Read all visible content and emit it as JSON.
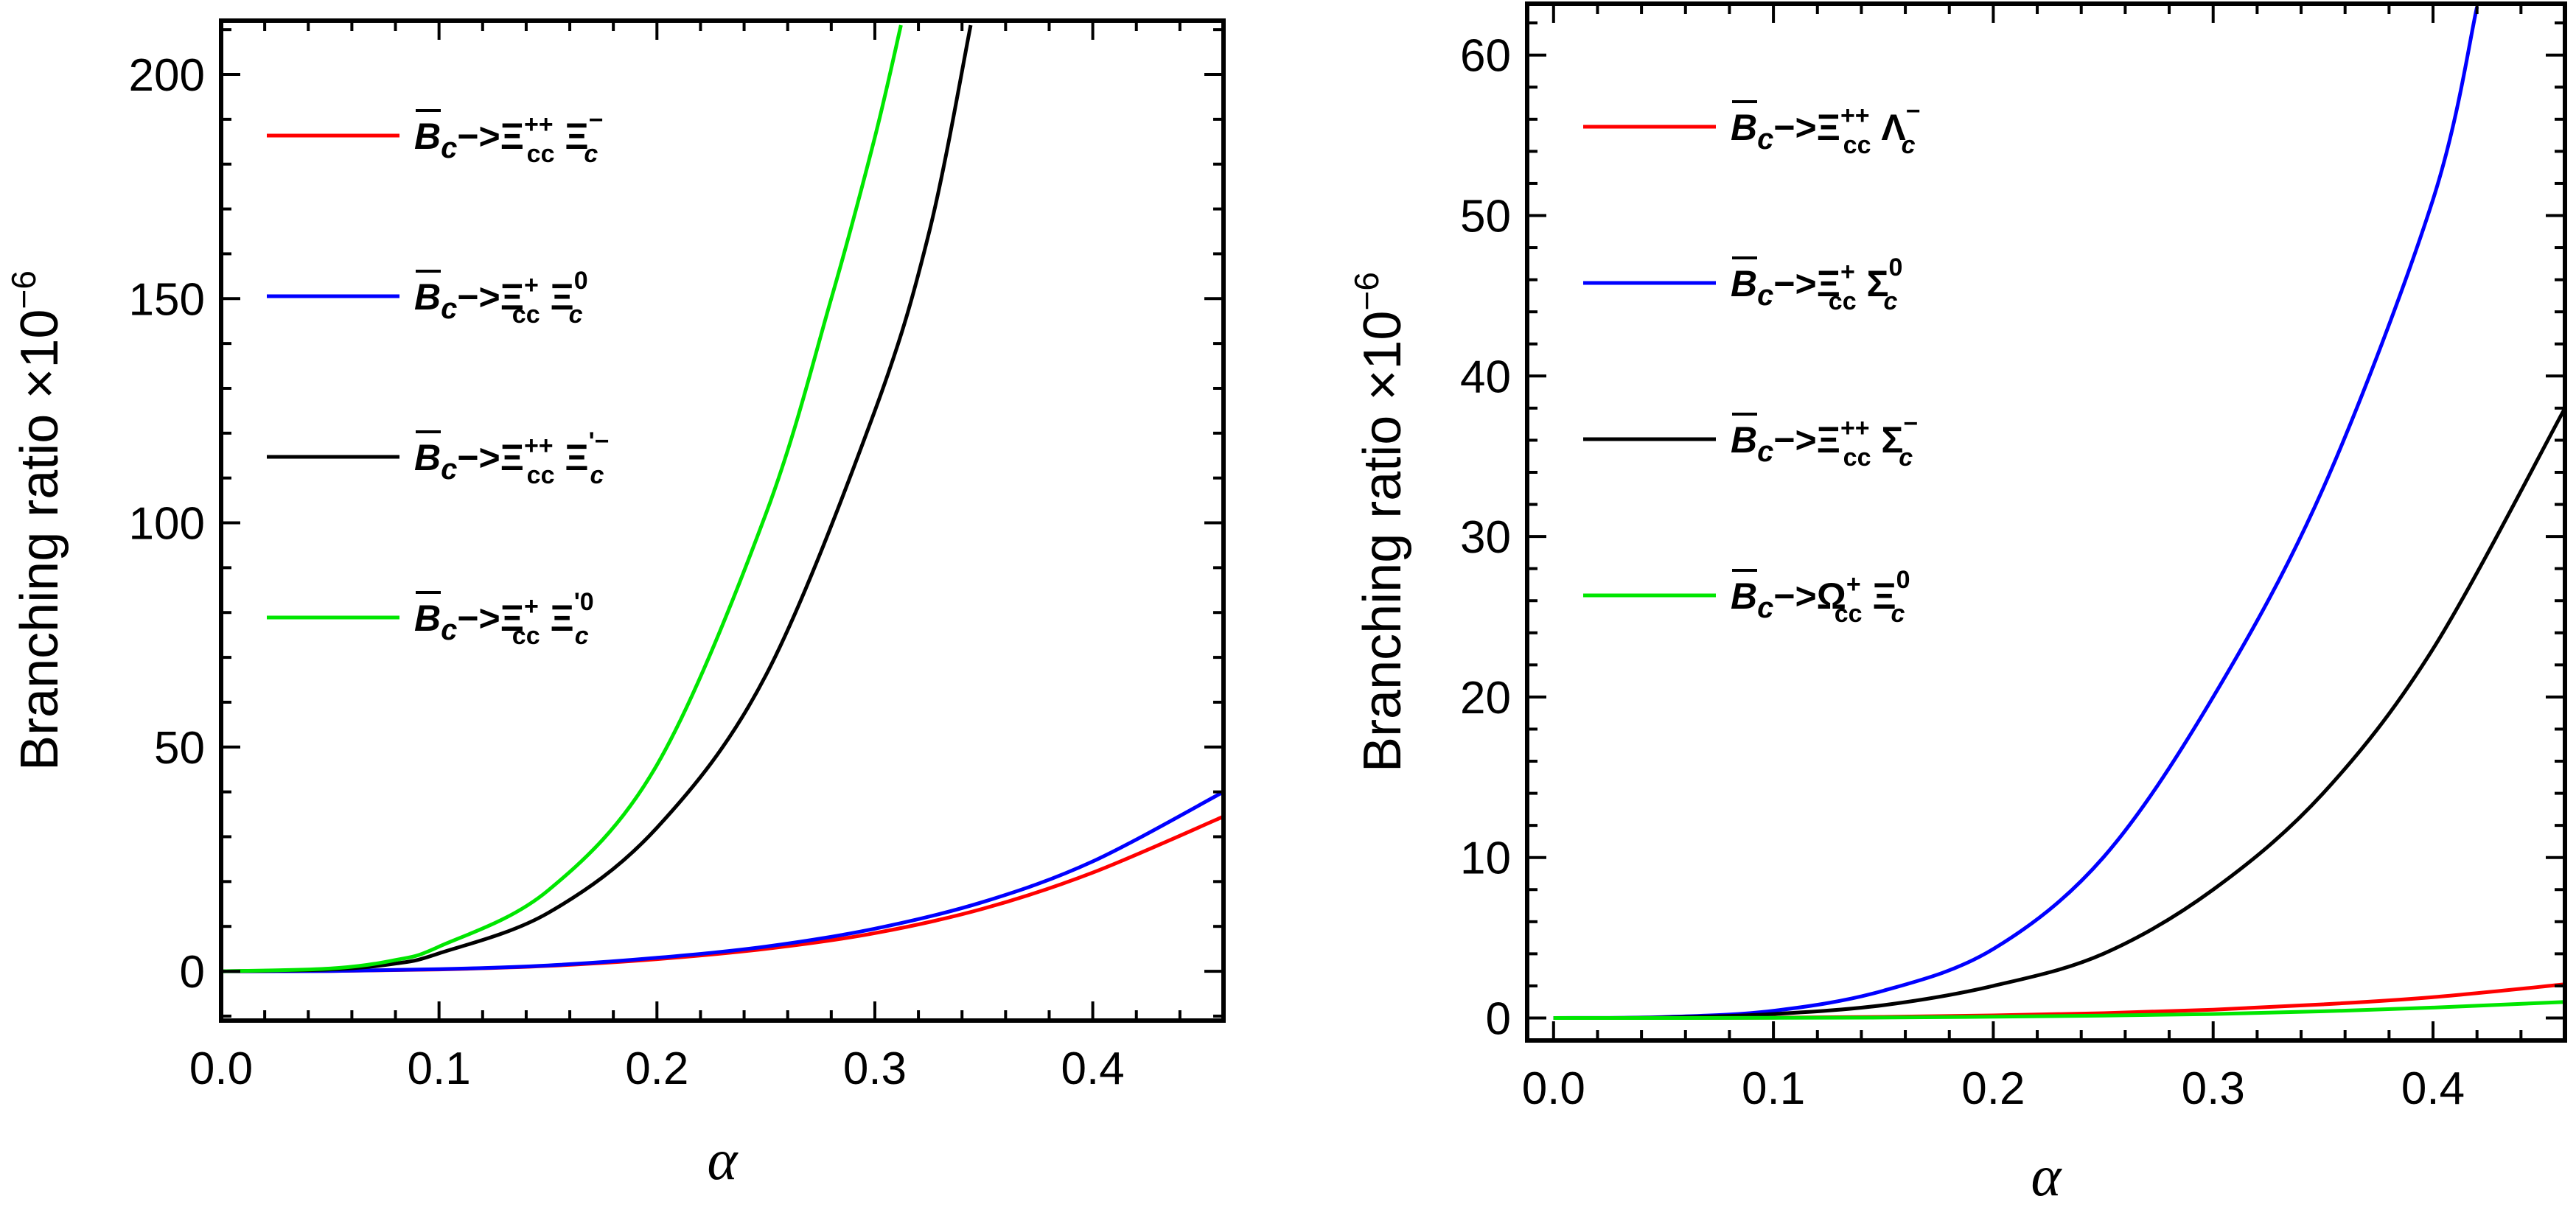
{
  "chart_data": [
    {
      "type": "line",
      "xlabel": "α",
      "ylabel": "Branching ratio ×10",
      "ylabel_exp": "−6",
      "xlim": [
        0,
        0.46
      ],
      "ylim": [
        -11,
        212
      ],
      "xticks": [
        0.0,
        0.1,
        0.2,
        0.3,
        0.4
      ],
      "xtick_labels": [
        "0.0",
        "0.1",
        "0.2",
        "0.3",
        "0.4"
      ],
      "yticks": [
        0,
        50,
        100,
        150,
        200
      ],
      "ytick_labels": [
        "0",
        "50",
        "100",
        "150",
        "200"
      ],
      "grid": false,
      "legend_position": "upper-left",
      "series": [
        {
          "color": "#ff0000",
          "label": {
            "main": "B",
            "sub": "c",
            "arrow": "−>Ξ",
            "p1_sup": "++",
            "p1_sub": "cc",
            "p2": "Ξ",
            "p2_sup": "−",
            "p2_sub": "c"
          },
          "x": [
            0,
            0.05,
            0.1,
            0.15,
            0.2,
            0.25,
            0.3,
            0.35,
            0.4,
            0.46
          ],
          "y": [
            0,
            0.04,
            0.4,
            1.2,
            2.7,
            5,
            8.5,
            14,
            22,
            34.5
          ]
        },
        {
          "color": "#0000ff",
          "label": {
            "main": "B",
            "sub": "c",
            "arrow": "−>Ξ",
            "p1_sup": "+",
            "p1_sub": "cc",
            "p2": "Ξ",
            "p2_sup": "0",
            "p2_sub": "c"
          },
          "x": [
            0,
            0.05,
            0.1,
            0.15,
            0.2,
            0.25,
            0.3,
            0.35,
            0.4,
            0.46
          ],
          "y": [
            0,
            0.05,
            0.45,
            1.3,
            3,
            5.5,
            9.5,
            15.5,
            24.5,
            40
          ]
        },
        {
          "color": "#000000",
          "label": {
            "main": "B",
            "sub": "c",
            "arrow": "−>Ξ",
            "p1_sup": "++",
            "p1_sub": "cc",
            "p2": "Ξ",
            "p2_sup": "'−",
            "p2_sub": "c"
          },
          "x": [
            0,
            0.05,
            0.08,
            0.1,
            0.15,
            0.2,
            0.25,
            0.3,
            0.325,
            0.344
          ],
          "y": [
            0,
            0.4,
            1.7,
            4,
            13,
            32,
            66,
            125,
            165,
            211
          ]
        },
        {
          "color": "#00e600",
          "label": {
            "main": "B",
            "sub": "c",
            "arrow": "−>Ξ",
            "p1_sup": "+",
            "p1_sub": "cc",
            "p2": "Ξ",
            "p2_sup": "'0",
            "p2_sub": "c"
          },
          "x": [
            0,
            0.05,
            0.08,
            0.1,
            0.15,
            0.2,
            0.25,
            0.28,
            0.3,
            0.312
          ],
          "y": [
            0,
            0.6,
            2.5,
            5.5,
            18,
            46,
            102,
            150,
            186,
            211
          ]
        }
      ]
    },
    {
      "type": "line",
      "xlabel": "α",
      "ylabel": "Branching ratio ×10",
      "ylabel_exp": "−6",
      "xlim": [
        -0.012,
        0.46
      ],
      "ylim": [
        -1.4,
        63.2
      ],
      "xticks": [
        0.0,
        0.1,
        0.2,
        0.3,
        0.4
      ],
      "xtick_labels": [
        "0.0",
        "0.1",
        "0.2",
        "0.3",
        "0.4"
      ],
      "yticks": [
        0,
        10,
        20,
        30,
        40,
        50,
        60
      ],
      "ytick_labels": [
        "0",
        "10",
        "20",
        "30",
        "40",
        "50",
        "60"
      ],
      "grid": false,
      "legend_position": "upper-left",
      "series": [
        {
          "color": "#ff0000",
          "label": {
            "main": "B",
            "sub": "c",
            "arrow": "−>Ξ",
            "p1_sup": "++",
            "p1_sub": "cc",
            "p2": "Λ",
            "p2_sup": "−",
            "p2_sub": "c"
          },
          "x": [
            0,
            0.05,
            0.1,
            0.15,
            0.2,
            0.25,
            0.3,
            0.35,
            0.4,
            0.46
          ],
          "y": [
            0,
            0.002,
            0.02,
            0.07,
            0.16,
            0.3,
            0.52,
            0.85,
            1.3,
            2.1
          ]
        },
        {
          "color": "#0000ff",
          "label": {
            "main": "B",
            "sub": "c",
            "arrow": "−>Ξ",
            "p1_sup": "+",
            "p1_sub": "cc",
            "p2": "Σ",
            "p2_sup": "0",
            "p2_sub": "c"
          },
          "x": [
            0,
            0.05,
            0.1,
            0.15,
            0.2,
            0.25,
            0.3,
            0.35,
            0.4,
            0.42
          ],
          "y": [
            0,
            0.06,
            0.45,
            1.7,
            4.3,
            10,
            20,
            33,
            51,
            63
          ]
        },
        {
          "color": "#000000",
          "label": {
            "main": "B",
            "sub": "c",
            "arrow": "−>Ξ",
            "p1_sup": "++",
            "p1_sub": "cc",
            "p2": "Σ",
            "p2_sup": "−",
            "p2_sub": "c"
          },
          "x": [
            0,
            0.05,
            0.1,
            0.15,
            0.2,
            0.25,
            0.3,
            0.35,
            0.4,
            0.46
          ],
          "y": [
            0,
            0.03,
            0.25,
            0.8,
            2,
            4,
            8,
            14,
            23,
            38
          ]
        },
        {
          "color": "#00e600",
          "label": {
            "main": "B",
            "sub": "c",
            "arrow": "−>Ω",
            "p1_sup": "+",
            "p1_sub": "cc",
            "p2": "Ξ",
            "p2_sup": "0",
            "p2_sub": "c"
          },
          "x": [
            0,
            0.05,
            0.1,
            0.15,
            0.2,
            0.25,
            0.3,
            0.35,
            0.4,
            0.46
          ],
          "y": [
            0,
            0.001,
            0.01,
            0.03,
            0.08,
            0.15,
            0.25,
            0.42,
            0.65,
            1.0
          ]
        }
      ]
    }
  ]
}
